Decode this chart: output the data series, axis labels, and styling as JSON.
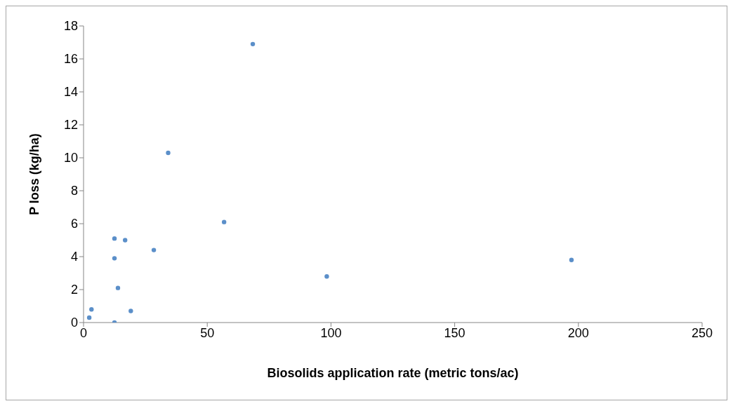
{
  "chart_data": {
    "type": "scatter",
    "xlabel": "Biosolids application rate (metric tons/ac)",
    "ylabel": "P loss (kg/ha)",
    "x": [
      2.3,
      3.2,
      12.5,
      12.5,
      12.5,
      13.9,
      16.8,
      19.1,
      28.4,
      34.2,
      56.8,
      68.4,
      98.3,
      197.2
    ],
    "series": [
      {
        "color": "#5b8fc9",
        "values": [
          0.3,
          0.8,
          0,
          3.9,
          5.1,
          2.1,
          5.0,
          0.7,
          4.4,
          10.3,
          6.1,
          16.9,
          2.8,
          3.8
        ]
      }
    ],
    "xlim": [
      0,
      250
    ],
    "xticks": [
      0,
      50,
      100,
      150,
      200,
      250
    ],
    "ylim": [
      0,
      18
    ],
    "yticks": [
      0,
      2,
      4,
      6,
      8,
      10,
      12,
      14,
      16,
      18
    ],
    "grid": false,
    "legend": false,
    "marker": "circle"
  }
}
